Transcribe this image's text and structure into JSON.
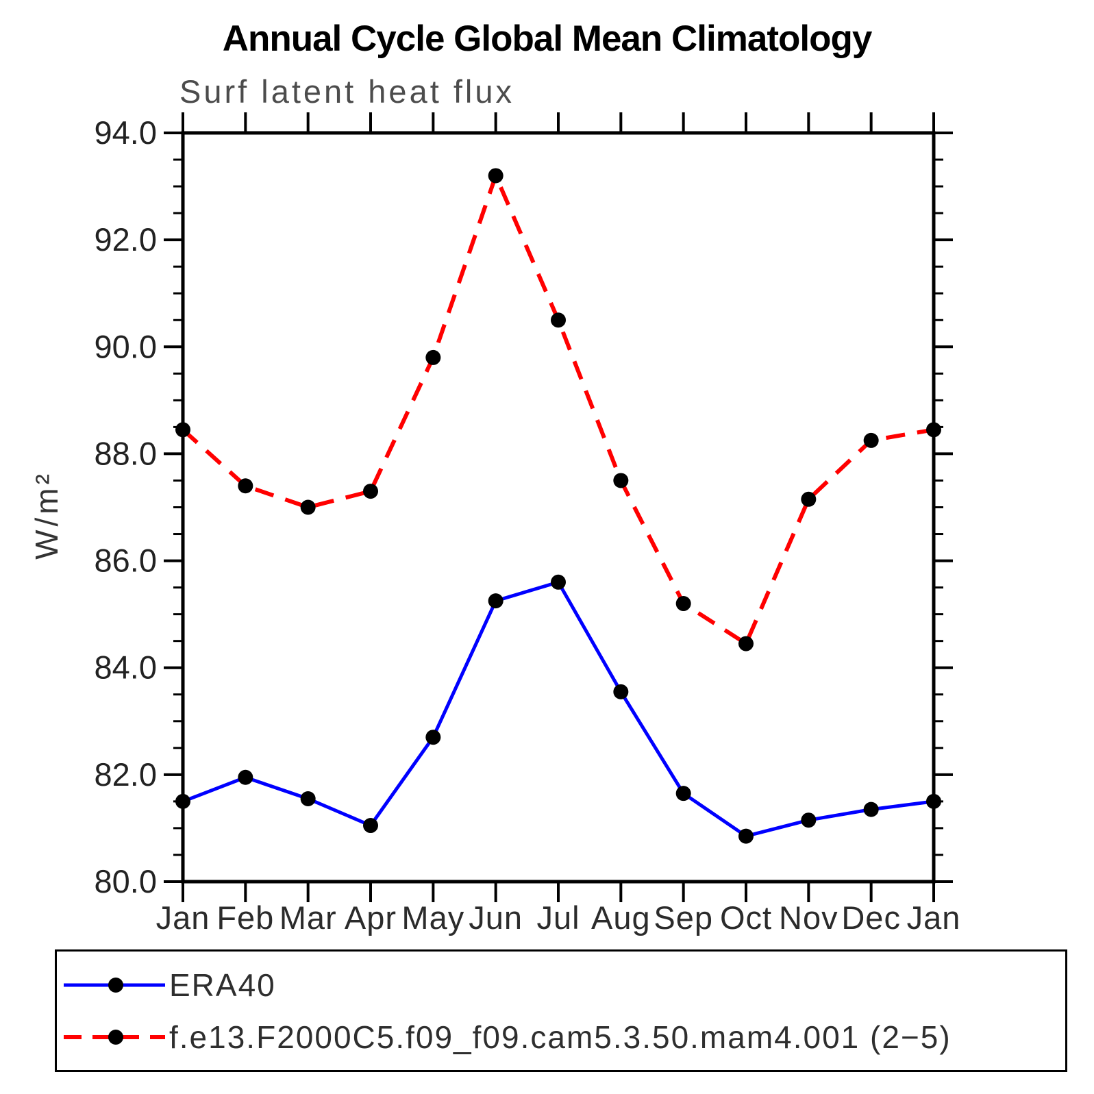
{
  "page_title": "Annual Cycle Global Mean Climatology",
  "chart_data": {
    "type": "line",
    "title": "Annual Cycle Global Mean Climatology",
    "subtitle": "Surf latent heat flux",
    "ylabel": "W/m²",
    "xlabel": "",
    "x_categories": [
      "Jan",
      "Feb",
      "Mar",
      "Apr",
      "May",
      "Jun",
      "Jul",
      "Aug",
      "Sep",
      "Oct",
      "Nov",
      "Dec",
      "Jan"
    ],
    "ylim": [
      80.0,
      94.0
    ],
    "ytick_step": 2.0,
    "yminor_step": 0.5,
    "ytick_labels": [
      "94.0",
      "92.0",
      "90.0",
      "88.0",
      "86.0",
      "84.0",
      "82.0",
      "80.0"
    ],
    "grid": false,
    "legend_position": "bottom",
    "axis_color": "#000000",
    "marker_color": "#000000",
    "series": [
      {
        "name": "ERA40",
        "color": "#0000ff",
        "style": "solid",
        "marker": "circle",
        "values": [
          81.5,
          81.95,
          81.55,
          81.05,
          82.7,
          85.25,
          85.6,
          83.55,
          81.65,
          80.85,
          81.15,
          81.35,
          81.5
        ]
      },
      {
        "name": "f.e13.F2000C5.f09_f09.cam5.3.50.mam4.001 (2−5)",
        "color": "#ff0000",
        "style": "dashed",
        "marker": "circle",
        "values": [
          88.45,
          87.4,
          87.0,
          87.3,
          89.8,
          93.2,
          90.5,
          87.5,
          85.2,
          84.45,
          87.15,
          88.25,
          88.45
        ]
      }
    ]
  }
}
